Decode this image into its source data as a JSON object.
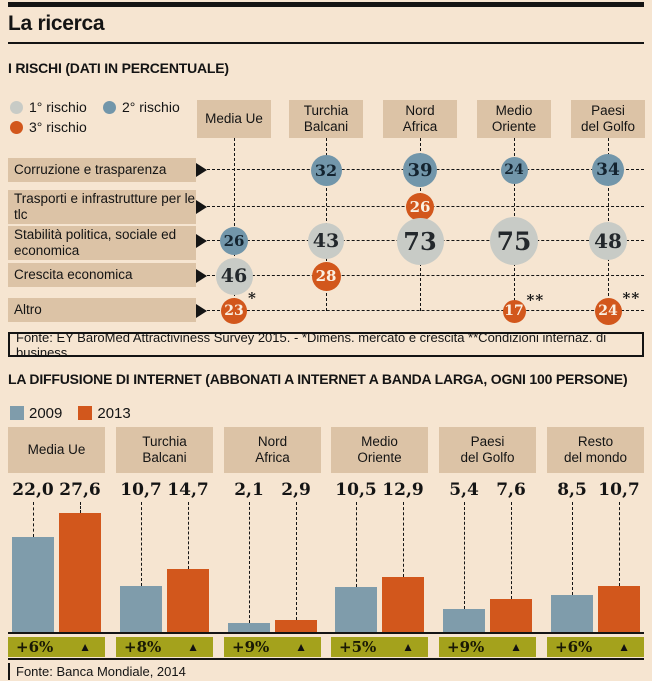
{
  "title": "La ricerca",
  "colors": {
    "background": "#f6e5d1",
    "panel_box": "#dcc3a6",
    "risk1": "#c8cbc6",
    "risk2": "#7296aa",
    "risk3": "#d2571c",
    "bar_2009": "#7f9cab",
    "bar_2013": "#d2571c",
    "growth_badge": "#a4a21c",
    "ink": "#141414"
  },
  "risks": {
    "title": "I RISCHI (DATI IN PERCENTUALE)",
    "legend": [
      {
        "label": "1° rischio"
      },
      {
        "label": "2° rischio"
      },
      {
        "label": "3°  rischio"
      }
    ],
    "source": "Fonte: EY BaroMed Attractiviness Survey 2015. - *Dimens. mercato e crescita **Condizioni internaz. di business"
  },
  "internet": {
    "title": "LA DIFFUSIONE DI INTERNET (ABBONATI A INTERNET A BANDA LARGA, OGNI 100 PERSONE)",
    "legend": [
      {
        "label": "2009"
      },
      {
        "label": "2013"
      }
    ],
    "source": "Fonte: Banca Mondiale, 2014"
  },
  "chart_data": [
    {
      "type": "heatmap",
      "subtype": "bubble-matrix",
      "title": "I RISCHI (DATI IN PERCENTUALE)",
      "unit": "percent",
      "legend": [
        "1° rischio",
        "2° rischio",
        "3° rischio"
      ],
      "columns": [
        "Media Ue",
        "Turchia Balcani",
        "Nord Africa",
        "Medio Oriente",
        "Paesi del Golfo"
      ],
      "rows": [
        "Corruzione e trasparenza",
        "Trasporti e infrastrutture per le tlc",
        "Stabilità politica, sociale ed economica",
        "Crescita economica",
        "Altro"
      ],
      "cells": [
        {
          "row": 0,
          "col": 1,
          "value": 32,
          "rank": 2
        },
        {
          "row": 0,
          "col": 2,
          "value": 39,
          "rank": 2
        },
        {
          "row": 0,
          "col": 3,
          "value": 24,
          "rank": 2
        },
        {
          "row": 0,
          "col": 4,
          "value": 34,
          "rank": 2
        },
        {
          "row": 1,
          "col": 2,
          "value": 26,
          "rank": 3
        },
        {
          "row": 2,
          "col": 0,
          "value": 26,
          "rank": 2
        },
        {
          "row": 2,
          "col": 1,
          "value": 43,
          "rank": 1
        },
        {
          "row": 2,
          "col": 2,
          "value": 73,
          "rank": 1
        },
        {
          "row": 2,
          "col": 3,
          "value": 75,
          "rank": 1
        },
        {
          "row": 2,
          "col": 4,
          "value": 48,
          "rank": 1
        },
        {
          "row": 3,
          "col": 0,
          "value": 46,
          "rank": 1
        },
        {
          "row": 3,
          "col": 1,
          "value": 28,
          "rank": 3
        },
        {
          "row": 4,
          "col": 0,
          "value": 23,
          "rank": 3,
          "note": "*"
        },
        {
          "row": 4,
          "col": 3,
          "value": 17,
          "rank": 3,
          "note": "**"
        },
        {
          "row": 4,
          "col": 4,
          "value": 24,
          "rank": 3,
          "note": "**"
        }
      ],
      "footnotes": {
        "*": "Dimens. mercato e crescita",
        "**": "Condizioni internaz. di business"
      }
    },
    {
      "type": "bar",
      "title": "LA DIFFUSIONE DI INTERNET (ABBONATI A INTERNET A BANDA LARGA, OGNI 100 PERSONE)",
      "categories": [
        "Media Ue",
        "Turchia Balcani",
        "Nord Africa",
        "Medio Oriente",
        "Paesi del Golfo",
        "Resto del mondo"
      ],
      "series": [
        {
          "name": "2009",
          "values": [
            22.0,
            10.7,
            2.1,
            10.5,
            5.4,
            8.5
          ]
        },
        {
          "name": "2013",
          "values": [
            27.6,
            14.7,
            2.9,
            12.9,
            7.6,
            10.7
          ]
        }
      ],
      "growth": [
        "+6%",
        "+8%",
        "+9%",
        "+5%",
        "+9%",
        "+6%"
      ],
      "ylim": [
        0,
        28
      ],
      "grid": false,
      "legend_position": "top-left"
    }
  ]
}
